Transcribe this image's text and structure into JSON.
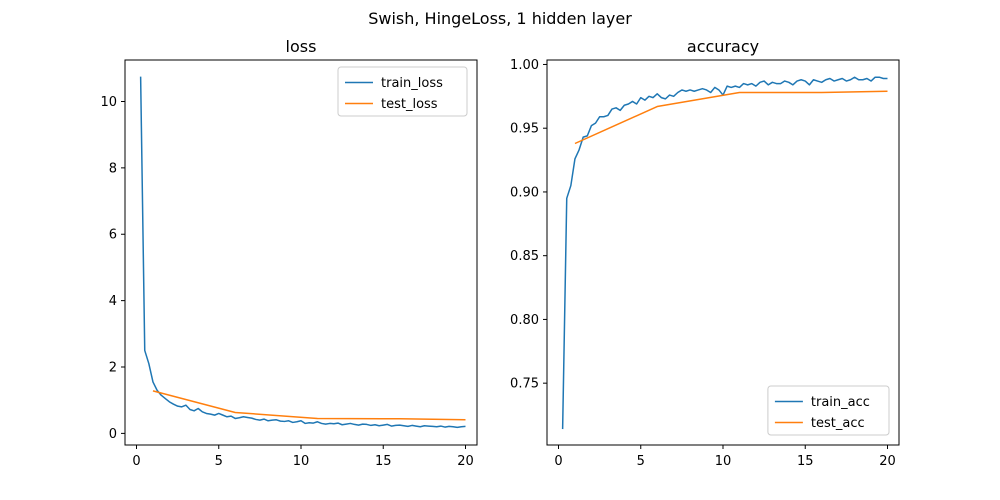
{
  "figure": {
    "title": "Swish, HingeLoss, 1 hidden layer"
  },
  "colors": {
    "train": "#1f77b4",
    "test": "#ff7f0e"
  },
  "chart_data": [
    {
      "type": "line",
      "title": "loss",
      "xlabel": "",
      "ylabel": "",
      "xlim": [
        -0.7,
        20.7
      ],
      "ylim": [
        -0.35,
        11.25
      ],
      "xticks": [
        0,
        5,
        10,
        15,
        20
      ],
      "yticks": [
        0,
        2,
        4,
        6,
        8,
        10
      ],
      "ytick_labels": [
        "0",
        "2",
        "4",
        "6",
        "8",
        "10"
      ],
      "grid": false,
      "legend_position": "top-right",
      "series": [
        {
          "name": "train_loss",
          "color_key": "train",
          "x": [
            0.25,
            0.5,
            0.75,
            1,
            1.25,
            1.5,
            1.75,
            2,
            2.25,
            2.5,
            2.75,
            3,
            3.25,
            3.5,
            3.75,
            4,
            4.25,
            4.5,
            4.75,
            5,
            5.25,
            5.5,
            5.75,
            6,
            6.25,
            6.5,
            6.75,
            7,
            7.25,
            7.5,
            7.75,
            8,
            8.25,
            8.5,
            8.75,
            9,
            9.25,
            9.5,
            9.75,
            10,
            10.25,
            10.5,
            10.75,
            11,
            11.25,
            11.5,
            11.75,
            12,
            12.25,
            12.5,
            12.75,
            13,
            13.25,
            13.5,
            13.75,
            14,
            14.25,
            14.5,
            14.75,
            15,
            15.25,
            15.5,
            15.75,
            16,
            16.25,
            16.5,
            16.75,
            17,
            17.25,
            17.5,
            17.75,
            18,
            18.25,
            18.5,
            18.75,
            19,
            19.25,
            19.5,
            19.75,
            20
          ],
          "y": [
            10.75,
            2.5,
            2.1,
            1.55,
            1.3,
            1.15,
            1.05,
            0.95,
            0.88,
            0.82,
            0.8,
            0.85,
            0.72,
            0.68,
            0.75,
            0.65,
            0.6,
            0.58,
            0.55,
            0.6,
            0.55,
            0.5,
            0.52,
            0.45,
            0.47,
            0.5,
            0.48,
            0.46,
            0.42,
            0.4,
            0.43,
            0.38,
            0.4,
            0.41,
            0.37,
            0.36,
            0.38,
            0.33,
            0.35,
            0.38,
            0.3,
            0.32,
            0.31,
            0.35,
            0.3,
            0.28,
            0.3,
            0.29,
            0.31,
            0.26,
            0.28,
            0.3,
            0.27,
            0.25,
            0.28,
            0.27,
            0.24,
            0.26,
            0.23,
            0.25,
            0.27,
            0.22,
            0.24,
            0.25,
            0.23,
            0.21,
            0.24,
            0.22,
            0.2,
            0.23,
            0.22,
            0.21,
            0.2,
            0.22,
            0.19,
            0.21,
            0.2,
            0.18,
            0.2,
            0.21
          ]
        },
        {
          "name": "test_loss",
          "color_key": "test",
          "x": [
            1,
            6,
            11,
            16,
            20
          ],
          "y": [
            1.28,
            0.63,
            0.45,
            0.44,
            0.41
          ]
        }
      ]
    },
    {
      "type": "line",
      "title": "accuracy",
      "xlabel": "",
      "ylabel": "",
      "xlim": [
        -0.7,
        20.7
      ],
      "ylim": [
        0.7015,
        1.0035
      ],
      "xticks": [
        0,
        5,
        10,
        15,
        20
      ],
      "yticks": [
        0.75,
        0.8,
        0.85,
        0.9,
        0.95,
        1.0
      ],
      "ytick_labels": [
        "0.75",
        "0.80",
        "0.85",
        "0.90",
        "0.95",
        "1.00"
      ],
      "grid": false,
      "legend_position": "bottom-right",
      "series": [
        {
          "name": "train_acc",
          "color_key": "train",
          "x": [
            0.25,
            0.5,
            0.75,
            1,
            1.25,
            1.5,
            1.75,
            2,
            2.25,
            2.5,
            2.75,
            3,
            3.25,
            3.5,
            3.75,
            4,
            4.25,
            4.5,
            4.75,
            5,
            5.25,
            5.5,
            5.75,
            6,
            6.25,
            6.5,
            6.75,
            7,
            7.25,
            7.5,
            7.75,
            8,
            8.25,
            8.5,
            8.75,
            9,
            9.25,
            9.5,
            9.75,
            10,
            10.25,
            10.5,
            10.75,
            11,
            11.25,
            11.5,
            11.75,
            12,
            12.25,
            12.5,
            12.75,
            13,
            13.25,
            13.5,
            13.75,
            14,
            14.25,
            14.5,
            14.75,
            15,
            15.25,
            15.5,
            15.75,
            16,
            16.25,
            16.5,
            16.75,
            17,
            17.25,
            17.5,
            17.75,
            18,
            18.25,
            18.5,
            18.75,
            19,
            19.25,
            19.5,
            19.75,
            20
          ],
          "y": [
            0.714,
            0.895,
            0.905,
            0.926,
            0.933,
            0.943,
            0.944,
            0.952,
            0.954,
            0.959,
            0.959,
            0.96,
            0.965,
            0.966,
            0.964,
            0.968,
            0.969,
            0.971,
            0.969,
            0.974,
            0.972,
            0.975,
            0.974,
            0.977,
            0.974,
            0.973,
            0.976,
            0.975,
            0.978,
            0.98,
            0.979,
            0.98,
            0.979,
            0.98,
            0.981,
            0.98,
            0.978,
            0.982,
            0.98,
            0.976,
            0.983,
            0.982,
            0.983,
            0.982,
            0.985,
            0.984,
            0.985,
            0.983,
            0.986,
            0.987,
            0.984,
            0.986,
            0.985,
            0.985,
            0.987,
            0.986,
            0.984,
            0.987,
            0.988,
            0.987,
            0.984,
            0.988,
            0.987,
            0.986,
            0.988,
            0.989,
            0.987,
            0.988,
            0.989,
            0.987,
            0.988,
            0.99,
            0.988,
            0.988,
            0.989,
            0.987,
            0.99,
            0.99,
            0.989,
            0.989
          ]
        },
        {
          "name": "test_acc",
          "color_key": "test",
          "x": [
            1,
            6,
            11,
            16,
            20
          ],
          "y": [
            0.938,
            0.967,
            0.978,
            0.978,
            0.979
          ]
        }
      ]
    }
  ]
}
